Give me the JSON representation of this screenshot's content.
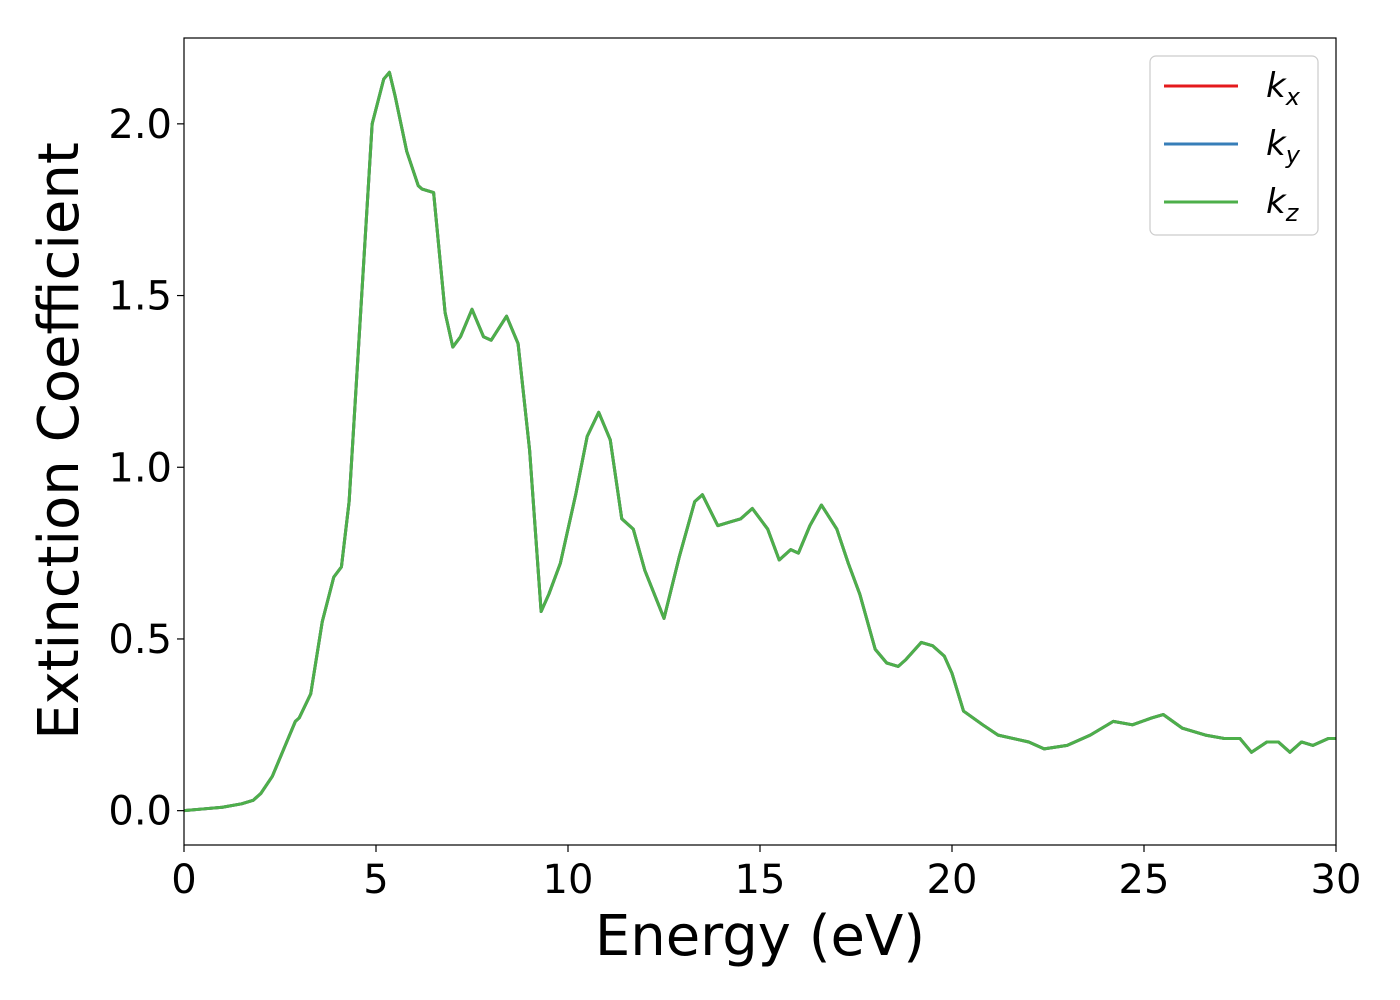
{
  "chart_data": {
    "type": "line",
    "xlabel": "Energy (eV)",
    "ylabel": "Extinction Coefficient",
    "xlim": [
      0,
      30
    ],
    "ylim": [
      -0.1,
      2.25
    ],
    "xticks": [
      0,
      5,
      10,
      15,
      20,
      25,
      30
    ],
    "xtick_labels": [
      "0",
      "5",
      "10",
      "15",
      "20",
      "25",
      "30"
    ],
    "yticks": [
      0.0,
      0.5,
      1.0,
      1.5,
      2.0
    ],
    "ytick_labels": [
      "0.0",
      "0.5",
      "1.0",
      "1.5",
      "2.0"
    ],
    "grid": false,
    "legend_position": "top-right",
    "legend": [
      {
        "base": "k",
        "sub": "x",
        "color": "#e41a1c"
      },
      {
        "base": "k",
        "sub": "y",
        "color": "#377eb8"
      },
      {
        "base": "k",
        "sub": "z",
        "color": "#4daf4a"
      }
    ],
    "x": [
      0,
      0.5,
      1.0,
      1.5,
      1.8,
      2.0,
      2.3,
      2.6,
      2.9,
      3.0,
      3.3,
      3.6,
      3.9,
      4.1,
      4.3,
      4.6,
      4.9,
      5.2,
      5.35,
      5.5,
      5.8,
      6.1,
      6.2,
      6.5,
      6.8,
      7.0,
      7.2,
      7.5,
      7.8,
      8.0,
      8.4,
      8.7,
      9.0,
      9.3,
      9.5,
      9.8,
      10.2,
      10.5,
      10.8,
      11.1,
      11.4,
      11.7,
      12.0,
      12.5,
      12.9,
      13.3,
      13.5,
      13.9,
      14.2,
      14.5,
      14.8,
      15.2,
      15.5,
      15.8,
      16.0,
      16.3,
      16.6,
      17.0,
      17.3,
      17.6,
      18.0,
      18.3,
      18.6,
      18.8,
      19.2,
      19.5,
      19.8,
      20.0,
      20.3,
      20.8,
      21.2,
      21.6,
      22.0,
      22.4,
      23.0,
      23.6,
      24.2,
      24.7,
      25.2,
      25.5,
      26.0,
      26.6,
      27.1,
      27.5,
      27.8,
      28.2,
      28.5,
      28.8,
      29.1,
      29.4,
      29.8,
      30.0
    ],
    "series": [
      {
        "name": "k_x",
        "color": "#e41a1c",
        "values": [
          0.0,
          0.005,
          0.01,
          0.02,
          0.03,
          0.05,
          0.1,
          0.18,
          0.26,
          0.27,
          0.34,
          0.55,
          0.68,
          0.71,
          0.9,
          1.45,
          2.0,
          2.13,
          2.15,
          2.08,
          1.92,
          1.82,
          1.81,
          1.8,
          1.45,
          1.35,
          1.38,
          1.46,
          1.38,
          1.37,
          1.44,
          1.36,
          1.05,
          0.58,
          0.63,
          0.72,
          0.92,
          1.09,
          1.16,
          1.08,
          0.85,
          0.82,
          0.7,
          0.56,
          0.74,
          0.9,
          0.92,
          0.83,
          0.84,
          0.85,
          0.88,
          0.82,
          0.73,
          0.76,
          0.75,
          0.83,
          0.89,
          0.82,
          0.72,
          0.63,
          0.47,
          0.43,
          0.42,
          0.44,
          0.49,
          0.48,
          0.45,
          0.4,
          0.29,
          0.25,
          0.22,
          0.21,
          0.2,
          0.18,
          0.19,
          0.22,
          0.26,
          0.25,
          0.27,
          0.28,
          0.24,
          0.22,
          0.21,
          0.21,
          0.17,
          0.2,
          0.2,
          0.17,
          0.2,
          0.19,
          0.21,
          0.21
        ]
      },
      {
        "name": "k_y",
        "color": "#377eb8",
        "values": [
          0.0,
          0.005,
          0.01,
          0.02,
          0.03,
          0.05,
          0.1,
          0.18,
          0.26,
          0.27,
          0.34,
          0.55,
          0.68,
          0.71,
          0.9,
          1.45,
          2.0,
          2.13,
          2.15,
          2.08,
          1.92,
          1.82,
          1.81,
          1.8,
          1.45,
          1.35,
          1.38,
          1.46,
          1.38,
          1.37,
          1.44,
          1.36,
          1.05,
          0.58,
          0.63,
          0.72,
          0.92,
          1.09,
          1.16,
          1.08,
          0.85,
          0.82,
          0.7,
          0.56,
          0.74,
          0.9,
          0.92,
          0.83,
          0.84,
          0.85,
          0.88,
          0.82,
          0.73,
          0.76,
          0.75,
          0.83,
          0.89,
          0.82,
          0.72,
          0.63,
          0.47,
          0.43,
          0.42,
          0.44,
          0.49,
          0.48,
          0.45,
          0.4,
          0.29,
          0.25,
          0.22,
          0.21,
          0.2,
          0.18,
          0.19,
          0.22,
          0.26,
          0.25,
          0.27,
          0.28,
          0.24,
          0.22,
          0.21,
          0.21,
          0.17,
          0.2,
          0.2,
          0.17,
          0.2,
          0.19,
          0.21,
          0.21
        ]
      },
      {
        "name": "k_z",
        "color": "#4daf4a",
        "values": [
          0.0,
          0.005,
          0.01,
          0.02,
          0.03,
          0.05,
          0.1,
          0.18,
          0.26,
          0.27,
          0.34,
          0.55,
          0.68,
          0.71,
          0.9,
          1.45,
          2.0,
          2.13,
          2.15,
          2.08,
          1.92,
          1.82,
          1.81,
          1.8,
          1.45,
          1.35,
          1.38,
          1.46,
          1.38,
          1.37,
          1.44,
          1.36,
          1.05,
          0.58,
          0.63,
          0.72,
          0.92,
          1.09,
          1.16,
          1.08,
          0.85,
          0.82,
          0.7,
          0.56,
          0.74,
          0.9,
          0.92,
          0.83,
          0.84,
          0.85,
          0.88,
          0.82,
          0.73,
          0.76,
          0.75,
          0.83,
          0.89,
          0.82,
          0.72,
          0.63,
          0.47,
          0.43,
          0.42,
          0.44,
          0.49,
          0.48,
          0.45,
          0.4,
          0.29,
          0.25,
          0.22,
          0.21,
          0.2,
          0.18,
          0.19,
          0.22,
          0.26,
          0.25,
          0.27,
          0.28,
          0.24,
          0.22,
          0.21,
          0.21,
          0.17,
          0.2,
          0.2,
          0.17,
          0.2,
          0.19,
          0.21,
          0.21
        ]
      }
    ]
  }
}
